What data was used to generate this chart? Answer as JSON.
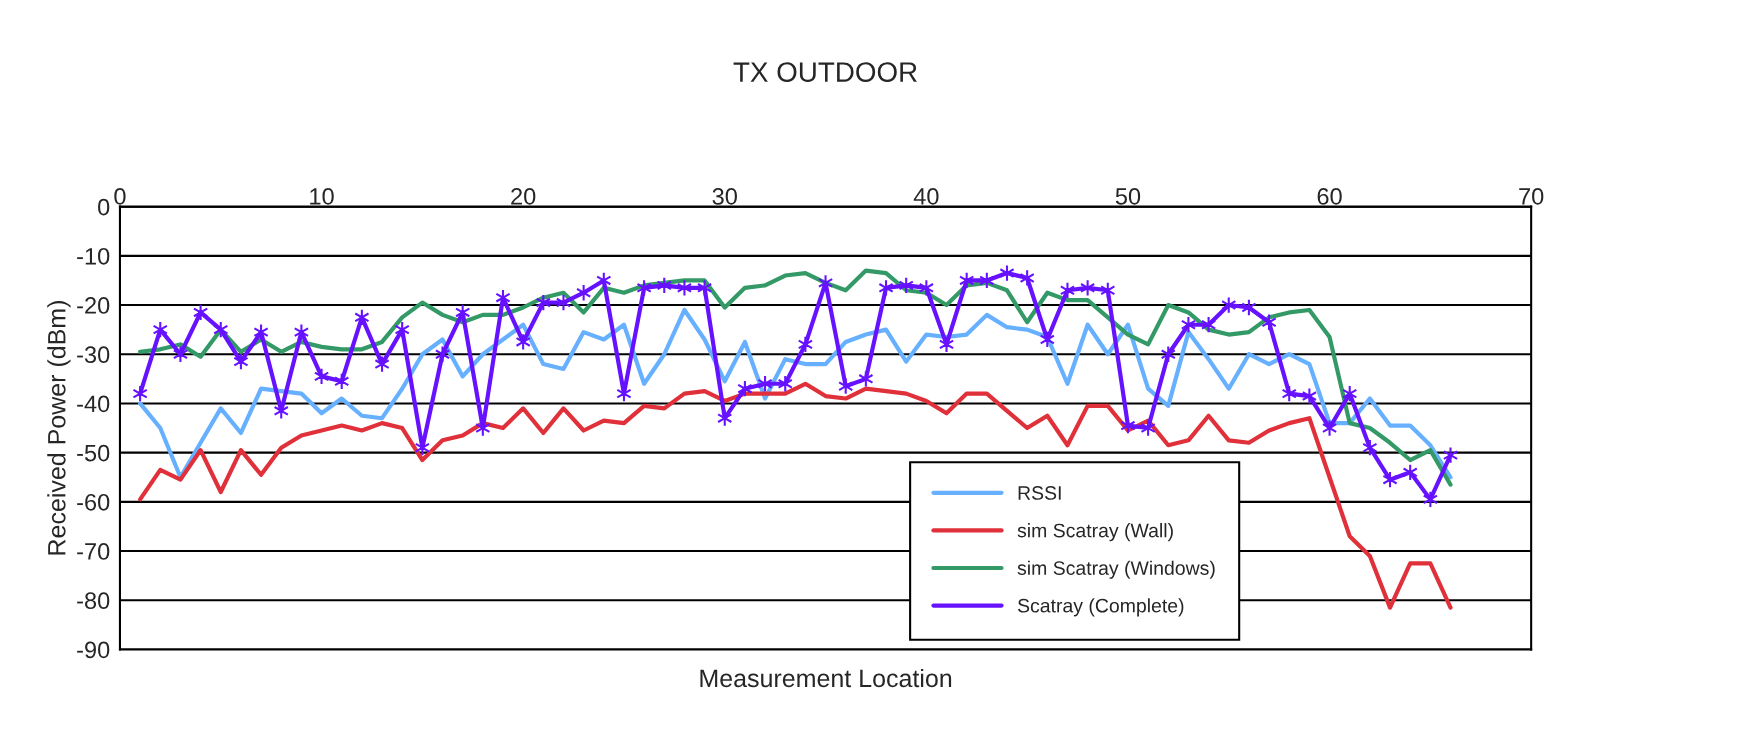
{
  "chart_data": {
    "type": "line",
    "title": "TX OUTDOOR",
    "xlabel": "Measurement Location",
    "ylabel": "Received Power (dBm)",
    "x": [
      1,
      2,
      3,
      4,
      5,
      6,
      7,
      8,
      9,
      10,
      11,
      12,
      13,
      14,
      15,
      16,
      17,
      18,
      19,
      20,
      21,
      22,
      23,
      24,
      25,
      26,
      27,
      28,
      29,
      30,
      31,
      32,
      33,
      34,
      35,
      36,
      37,
      38,
      39,
      40,
      41,
      42,
      43,
      44,
      45,
      46,
      47,
      48,
      49,
      50,
      51,
      52,
      53,
      54,
      55,
      56,
      57,
      58,
      59,
      60,
      61,
      62,
      63,
      64,
      65,
      66
    ],
    "xlim": [
      0,
      70
    ],
    "xticks": [
      0,
      10,
      20,
      30,
      40,
      50,
      60,
      70
    ],
    "ylim": [
      -90,
      0
    ],
    "yticks": [
      -90,
      -80,
      -70,
      -60,
      -50,
      -40,
      -30,
      -20,
      -10,
      0
    ],
    "grid": "y",
    "legend": "bottom right",
    "line_style": "solid",
    "series": [
      {
        "name": "RSSI",
        "color": "#66b0ff",
        "marker": "none",
        "values": [
          -40,
          -45,
          -55,
          -48,
          -41,
          -46,
          -37,
          -37.5,
          -38,
          -42,
          -39,
          -42.5,
          -43,
          -37,
          -30,
          -27,
          -34.5,
          -30,
          -27,
          -24,
          -32,
          -33,
          -25.5,
          -27,
          -24,
          -36,
          -30,
          -21,
          -27,
          -35.5,
          -27.5,
          -39,
          -31,
          -32,
          -32,
          -27.5,
          -26,
          -25,
          -31.5,
          -26,
          -26.5,
          -26,
          -22,
          -24.5,
          -25,
          -26.5,
          -36,
          -24,
          -30,
          -24,
          -37,
          -40.5,
          -25.5,
          -31,
          -37,
          -30,
          -32,
          -30,
          -32,
          -44,
          -44,
          -39,
          -44.5,
          -44.5,
          -48.5,
          -55
        ]
      },
      {
        "name": "sim Scatray (Wall)",
        "color": "#e0303a",
        "marker": "none",
        "values": [
          -59.5,
          -53.5,
          -55.5,
          -49.5,
          -58,
          -49.5,
          -54.5,
          -49,
          -46.5,
          -45.5,
          -44.5,
          -45.5,
          -44,
          -45,
          -51.5,
          -47.5,
          -46.5,
          -44,
          -45,
          -41,
          -46,
          -41,
          -45.5,
          -43.5,
          -44,
          -40.5,
          -41,
          -38,
          -37.5,
          -39.5,
          -38,
          -38,
          -38,
          -36,
          -38.5,
          -39,
          -37,
          -37.5,
          -38,
          -39.5,
          -42,
          -38,
          -38,
          -41.5,
          -45,
          -42.5,
          -48.5,
          -40.5,
          -40.5,
          -45.5,
          -43.5,
          -48.5,
          -47.5,
          -42.5,
          -47.5,
          -48,
          -45.5,
          -44,
          -43,
          -55,
          -67,
          -71,
          -81.5,
          -72.5,
          -72.5,
          -81.5
        ]
      },
      {
        "name": "sim Scatray (Windows)",
        "color": "#339966",
        "marker": "none",
        "values": [
          -29.5,
          -29,
          -28,
          -30.5,
          -25,
          -29.5,
          -27,
          -29.5,
          -27.5,
          -28.5,
          -29,
          -29,
          -27.5,
          -22.5,
          -19.5,
          -22,
          -23.5,
          -22,
          -22,
          -20.5,
          -18.5,
          -17.5,
          -21.5,
          -16.5,
          -17.5,
          -16,
          -15.5,
          -15,
          -15,
          -20.5,
          -16.5,
          -16,
          -14,
          -13.5,
          -15.5,
          -17,
          -13,
          -13.5,
          -17,
          -17.5,
          -20,
          -16,
          -15.5,
          -17,
          -23.5,
          -17.5,
          -19,
          -19,
          -22.5,
          -26,
          -28,
          -20,
          -21.5,
          -25,
          -26,
          -25.5,
          -22.5,
          -21.5,
          -21,
          -26.5,
          -44,
          -45,
          -48,
          -51.5,
          -49.5,
          -56.5
        ]
      },
      {
        "name": "Scatray (Complete)",
        "color": "#6611ff",
        "marker": "cross",
        "values": [
          -38,
          -25,
          -30,
          -21.5,
          -25,
          -31.5,
          -25.5,
          -41.5,
          -25.5,
          -34.5,
          -35.5,
          -22.5,
          -32,
          -25,
          -49,
          -30,
          -21.5,
          -45,
          -18.5,
          -27.5,
          -19.5,
          -19.5,
          -17.5,
          -15,
          -38,
          -16.5,
          -16,
          -16.5,
          -16.5,
          -43,
          -37,
          -36,
          -36,
          -28,
          -15.5,
          -36.5,
          -35,
          -16.5,
          -16,
          -16.5,
          -28,
          -15,
          -15,
          -13.5,
          -14.5,
          -27,
          -17,
          -16.5,
          -17,
          -44.5,
          -45,
          -30,
          -24,
          -24,
          -20,
          -20.5,
          -23.5,
          -38,
          -38.5,
          -45,
          -38,
          -49,
          -55.5,
          -54,
          -59.5,
          -50.5
        ]
      }
    ]
  }
}
